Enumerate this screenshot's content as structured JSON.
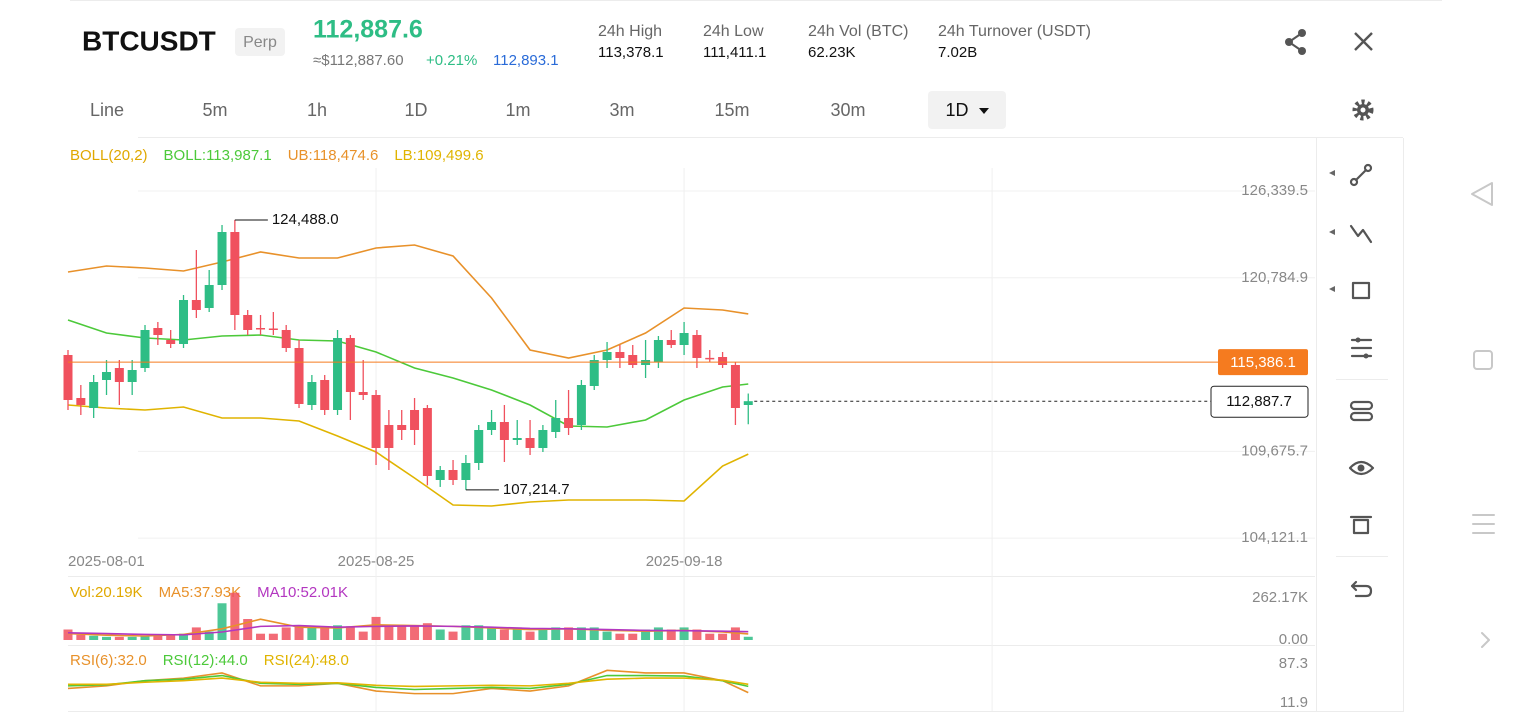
{
  "header": {
    "symbol": "BTCUSDT",
    "badge": "Perp",
    "price": "112,887.6",
    "approx": "≈$112,887.60",
    "change": "+0.21%",
    "mark": "112,893.1",
    "stats": [
      {
        "label": "24h High",
        "value": "113,378.1"
      },
      {
        "label": "24h Low",
        "value": "111,411.1"
      },
      {
        "label": "24h Vol (BTC)",
        "value": "62.23K"
      },
      {
        "label": "24h Turnover (USDT)",
        "value": "7.02B"
      }
    ]
  },
  "tabs": [
    "Line",
    "5m",
    "1h",
    "1D",
    "1m",
    "3m",
    "15m",
    "30m"
  ],
  "selected_tab": "1D",
  "chart_data": [
    {
      "type": "candlestick",
      "legend": [
        {
          "text": "BOLL(20,2)",
          "color": "#e0a800"
        },
        {
          "text": "BOLL:113,987.1",
          "color": "#4cc93a"
        },
        {
          "text": "UB:118,474.6",
          "color": "#e8912a"
        },
        {
          "text": "LB:109,499.6",
          "color": "#e0b400"
        }
      ],
      "up_color": "#2ebd85",
      "down_color": "#f0515e",
      "open": [
        115844,
        113092,
        112452,
        114244,
        115012,
        114116,
        115012,
        117572,
        116804,
        116548,
        119364,
        118852,
        120324,
        123716,
        118404,
        117572,
        117540,
        117444,
        116292,
        112644,
        114244,
        112324,
        116932,
        113476,
        113284,
        111364,
        111364,
        112324,
        112452,
        107844,
        108484,
        107844,
        108932,
        111044,
        111556,
        110404,
        110532,
        109892,
        110916,
        111812,
        111364,
        113860,
        115524,
        116036,
        115844,
        115204,
        115396,
        116804,
        116484,
        117124,
        115660,
        115716,
        115204,
        112644
      ],
      "high": [
        116164,
        113924,
        114564,
        115524,
        115524,
        115524,
        117764,
        117956,
        117444,
        119684,
        122564,
        121284,
        124164,
        124488.0,
        118724,
        118404,
        118596,
        117764,
        116804,
        114564,
        114564,
        117444,
        117124,
        115524,
        113604,
        112324,
        112324,
        113092,
        112644,
        108740,
        109124,
        109444,
        111364,
        112324,
        112644,
        111684,
        111684,
        111364,
        112964,
        113604,
        114244,
        115844,
        116676,
        116484,
        116484,
        116804,
        117060,
        117444,
        117956,
        117444,
        116164,
        116036,
        115396,
        113378.1
      ],
      "low": [
        112324,
        112004,
        111812,
        113284,
        112644,
        113284,
        114756,
        116484,
        116292,
        116292,
        118212,
        118596,
        120004,
        117444,
        117124,
        117124,
        117124,
        116036,
        112452,
        112324,
        112004,
        112004,
        111684,
        112964,
        108804,
        108484,
        110404,
        110084,
        107500,
        107400,
        107524,
        107214.7,
        108484,
        110724,
        108996,
        110084,
        109444,
        109636,
        110532,
        110724,
        111044,
        113604,
        115012,
        115012,
        115012,
        114372,
        115012,
        116292,
        115844,
        115012,
        115396,
        115012,
        111364,
        111411.1
      ],
      "close": [
        112964,
        112644,
        114116,
        114756,
        114116,
        114884,
        117444,
        117124,
        116548,
        119364,
        118724,
        120324,
        123716,
        118404,
        117444,
        117560,
        117520,
        116292,
        112708,
        114116,
        112324,
        116932,
        113476,
        113284,
        109892,
        109892,
        111044,
        111044,
        108100,
        108484,
        107844,
        108932,
        111044,
        111556,
        110404,
        110532,
        109892,
        111044,
        111812,
        111172,
        113924,
        115524,
        116036,
        115652,
        115204,
        115524,
        116804,
        116484,
        117252,
        115652,
        115640,
        115204,
        112452,
        112887.7
      ],
      "bands": [
        {
          "color": "#e8912a",
          "x": [
            0,
            3,
            6,
            9,
            12,
            15,
            18,
            21,
            24,
            27,
            30,
            33,
            36,
            39,
            42,
            45,
            48,
            51,
            53
          ],
          "values": [
            121156,
            121540,
            121412,
            121220,
            121796,
            122436,
            122052,
            122052,
            122692,
            122884,
            122180,
            119492,
            116164,
            115652,
            116164,
            117252,
            118852,
            118724,
            118474.6
          ]
        },
        {
          "color": "#4cc93a",
          "x": [
            0,
            3,
            6,
            9,
            12,
            15,
            18,
            21,
            24,
            27,
            30,
            33,
            36,
            39,
            42,
            45,
            48,
            51,
            53
          ],
          "values": [
            118084,
            117252,
            116932,
            116804,
            117060,
            117124,
            116804,
            116740,
            116036,
            115012,
            114372,
            113604,
            112644,
            111300,
            111236,
            111684,
            112964,
            113796,
            113987.1
          ]
        },
        {
          "color": "#e0b400",
          "x": [
            0,
            3,
            6,
            9,
            12,
            15,
            18,
            21,
            24,
            27,
            30,
            33,
            36,
            39,
            42,
            45,
            48,
            51,
            53
          ],
          "values": [
            112644,
            112452,
            112324,
            112516,
            111812,
            111812,
            111620,
            110660,
            109636,
            107972,
            106244,
            106180,
            106436,
            106564,
            106564,
            106564,
            106500,
            108740,
            109499.6
          ]
        }
      ],
      "annotations": [
        {
          "x": 13,
          "value": 124488.0,
          "label": "124,488.0"
        },
        {
          "x": 31,
          "value": 107214.7,
          "label": "107,214.7"
        }
      ],
      "price_line": {
        "value": 115386.1,
        "label": "115,386.1",
        "color": "#f57b1f"
      },
      "last_line": {
        "value": 112887.7,
        "label": "112,887.7"
      },
      "xlim": [
        0,
        97
      ],
      "ylim": [
        103492,
        129604
      ],
      "yticks": [
        {
          "value": 104121.1,
          "label": "104,121.1"
        },
        {
          "value": 109675.7,
          "label": "109,675.7"
        },
        {
          "value": 120784.9,
          "label": "120,784.9"
        },
        {
          "value": 126339.5,
          "label": "126,339.5"
        }
      ],
      "xticks": [
        {
          "value": 0,
          "label": "2025-08-01"
        },
        {
          "value": 24,
          "label": "2025-08-25"
        },
        {
          "value": 48,
          "label": "2025-09-18"
        }
      ],
      "xgrid": [
        24,
        48,
        72
      ],
      "grid": true
    },
    {
      "type": "volume",
      "legend": [
        {
          "text": "Vol:20.19K",
          "color": "#e0a800"
        },
        {
          "text": "MA5:37.93K",
          "color": "#e8912a"
        },
        {
          "text": "MA10:52.01K",
          "color": "#b336c0"
        }
      ],
      "values": [
        65500,
        32800,
        26200,
        19700,
        19700,
        19700,
        26200,
        26200,
        32800,
        39300,
        78600,
        52400,
        229300,
        294800,
        131000,
        39300,
        39300,
        78600,
        91700,
        78600,
        78600,
        91700,
        85200,
        52400,
        144100,
        91700,
        91700,
        91700,
        104800,
        65500,
        52400,
        91700,
        91700,
        78600,
        65500,
        78600,
        52400,
        65500,
        78600,
        78600,
        78600,
        78600,
        52400,
        39300,
        39300,
        65500,
        78600,
        65500,
        78600,
        65500,
        39300,
        39300,
        78600,
        20190
      ],
      "series": [
        {
          "color": "#e8912a",
          "x": [
            0,
            3,
            6,
            9,
            12,
            15,
            18,
            21,
            24,
            27,
            30,
            33,
            36,
            39,
            42,
            45,
            48,
            51,
            53
          ],
          "values": [
            40000,
            30000,
            25000,
            35000,
            70000,
            130000,
            80000,
            75000,
            95000,
            90000,
            85000,
            75000,
            65000,
            70000,
            60000,
            55000,
            60000,
            50000,
            37930
          ]
        },
        {
          "color": "#b336c0",
          "x": [
            0,
            3,
            6,
            9,
            12,
            15,
            18,
            21,
            24,
            27,
            30,
            33,
            36,
            39,
            42,
            45,
            48,
            51,
            53
          ],
          "values": [
            45000,
            40000,
            35000,
            32000,
            50000,
            85000,
            90000,
            80000,
            85000,
            88000,
            85000,
            80000,
            72000,
            70000,
            65000,
            60000,
            58000,
            55000,
            52010
          ]
        }
      ],
      "xlim": [
        0,
        97
      ],
      "ylim": [
        0,
        374520
      ],
      "yticks": [
        {
          "value": 0,
          "label": "0.00"
        },
        {
          "value": 262170,
          "label": "262.17K"
        }
      ]
    },
    {
      "type": "line",
      "legend": [
        {
          "text": "RSI(6):32.0",
          "color": "#e8912a"
        },
        {
          "text": "RSI(12):44.0",
          "color": "#4cc93a"
        },
        {
          "text": "RSI(24):48.0",
          "color": "#e0b400"
        }
      ],
      "series": [
        {
          "color": "#e8912a",
          "x": [
            0,
            3,
            6,
            9,
            12,
            15,
            18,
            21,
            24,
            27,
            30,
            33,
            36,
            39,
            42,
            45,
            48,
            51,
            53
          ],
          "values": [
            40,
            45,
            55,
            60,
            70,
            45,
            45,
            50,
            35,
            30,
            30,
            40,
            35,
            45,
            75,
            70,
            70,
            55,
            32.0
          ]
        },
        {
          "color": "#4cc93a",
          "x": [
            0,
            3,
            6,
            9,
            12,
            15,
            18,
            21,
            24,
            27,
            30,
            33,
            36,
            39,
            42,
            45,
            48,
            51,
            53
          ],
          "values": [
            45,
            47,
            55,
            58,
            65,
            50,
            48,
            50,
            42,
            38,
            40,
            42,
            40,
            48,
            65,
            65,
            64,
            55,
            44.0
          ]
        },
        {
          "color": "#e0b400",
          "x": [
            0,
            3,
            6,
            9,
            12,
            15,
            18,
            21,
            24,
            27,
            30,
            33,
            36,
            39,
            42,
            45,
            48,
            51,
            53
          ],
          "values": [
            48,
            48,
            52,
            55,
            60,
            52,
            50,
            51,
            46,
            44,
            45,
            46,
            45,
            50,
            58,
            60,
            60,
            56,
            48.0
          ]
        }
      ],
      "xlim": [
        0,
        97
      ],
      "ylim": [
        -5.5,
        118.2
      ],
      "yticks": [
        11.9,
        87.3
      ]
    }
  ]
}
